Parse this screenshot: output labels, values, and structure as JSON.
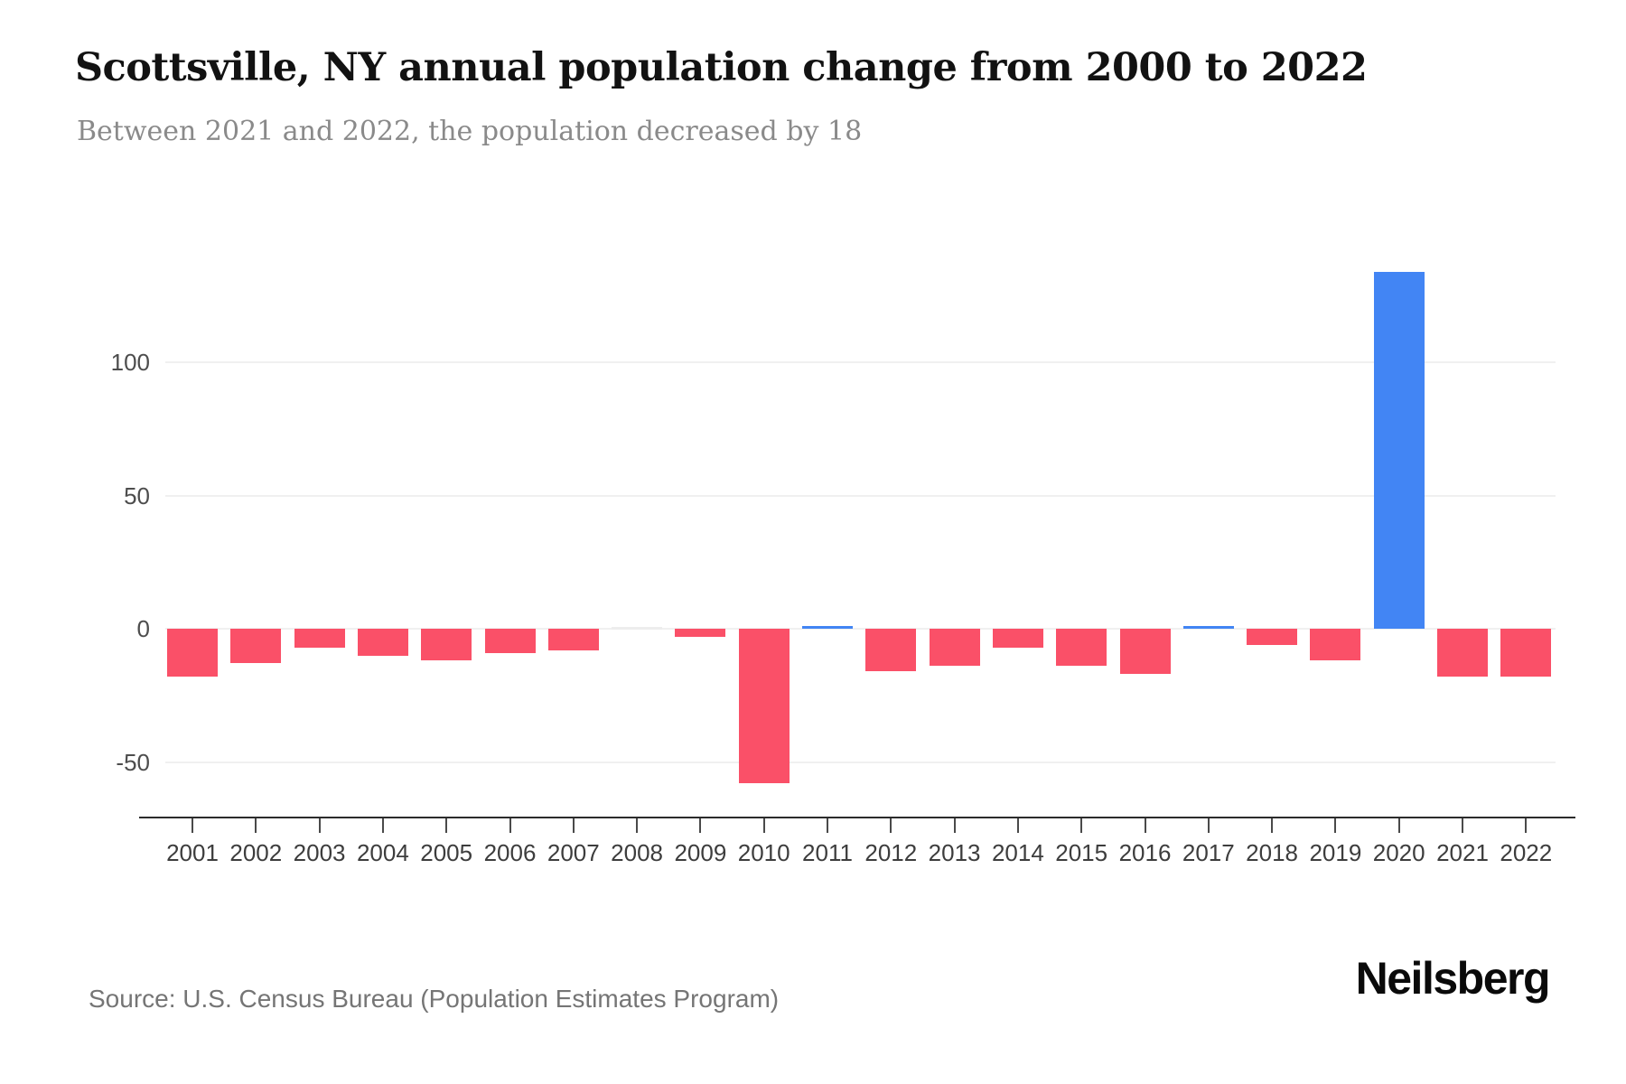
{
  "header": {
    "title": "Scottsville, NY annual population change from 2000 to 2022",
    "subtitle": "Between 2021 and 2022, the population decreased by 18"
  },
  "footer": {
    "source": "Source: U.S. Census Bureau (Population Estimates Program)",
    "brand": "Neilsberg"
  },
  "chart_data": {
    "type": "bar",
    "title": "Scottsville, NY annual population change from 2000 to 2022",
    "subtitle": "Between 2021 and 2022, the population decreased by 18",
    "categories": [
      "2001",
      "2002",
      "2003",
      "2004",
      "2005",
      "2006",
      "2007",
      "2008",
      "2009",
      "2010",
      "2011",
      "2012",
      "2013",
      "2014",
      "2015",
      "2016",
      "2017",
      "2018",
      "2019",
      "2020",
      "2021",
      "2022"
    ],
    "values": [
      -18,
      -13,
      -7,
      -10,
      -12,
      -9,
      -8,
      0,
      -3,
      -58,
      1,
      -16,
      -14,
      -7,
      -14,
      -17,
      1,
      -6,
      -12,
      134,
      -18,
      -18
    ],
    "xlabel": "",
    "ylabel": "",
    "yticks": [
      100,
      50,
      0,
      -50
    ],
    "ylim": [
      -71,
      148
    ],
    "grid": "horizontal",
    "legend": "none",
    "colors": {
      "positive": "#4285F4",
      "negative": "#FA5068",
      "zero_bar": "#EDEDED",
      "gridline": "#F0F0F0",
      "axis": "#2B2B2B"
    }
  }
}
